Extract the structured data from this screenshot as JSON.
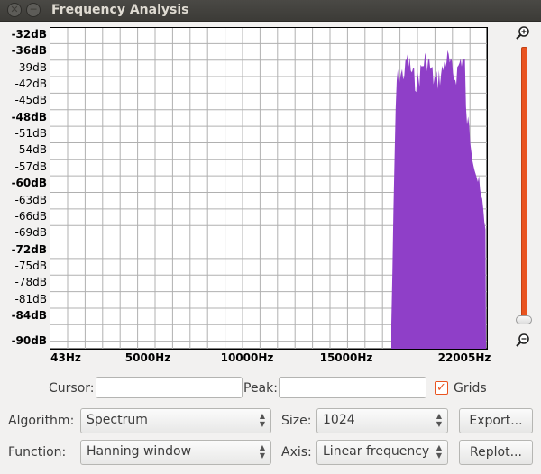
{
  "window": {
    "title": "Frequency Analysis",
    "close_icon": "close-icon",
    "minimize_icon": "minimize-icon"
  },
  "plot": {
    "ylabels": [
      "-32dB",
      "-36dB",
      "-39dB",
      "-42dB",
      "-45dB",
      "-48dB",
      "-51dB",
      "-54dB",
      "-57dB",
      "-60dB",
      "-63dB",
      "-66dB",
      "-69dB",
      "-72dB",
      "-75dB",
      "-78dB",
      "-81dB",
      "-84dB",
      "-90dB"
    ],
    "xlabels": [
      "43Hz",
      "5000Hz",
      "10000Hz",
      "15000Hz",
      "22005Hz"
    ],
    "fill_color": "#8f3fc8",
    "grid_color": "#b0b0b0"
  },
  "zoom": {
    "in_icon": "zoom-in-icon",
    "out_icon": "zoom-out-icon",
    "accent": "#e95420"
  },
  "controls": {
    "cursor_label": "Cursor:",
    "cursor_value": "",
    "peak_label": "Peak:",
    "peak_value": "",
    "grids_label": "Grids",
    "grids_checked": "✓",
    "algorithm_label": "Algorithm:",
    "algorithm_value": "Spectrum",
    "size_label": "Size:",
    "size_value": "1024",
    "export_label": "Export...",
    "function_label": "Function:",
    "function_value": "Hanning window",
    "axis_label": "Axis:",
    "axis_value": "Linear frequency",
    "replot_label": "Replot..."
  }
}
